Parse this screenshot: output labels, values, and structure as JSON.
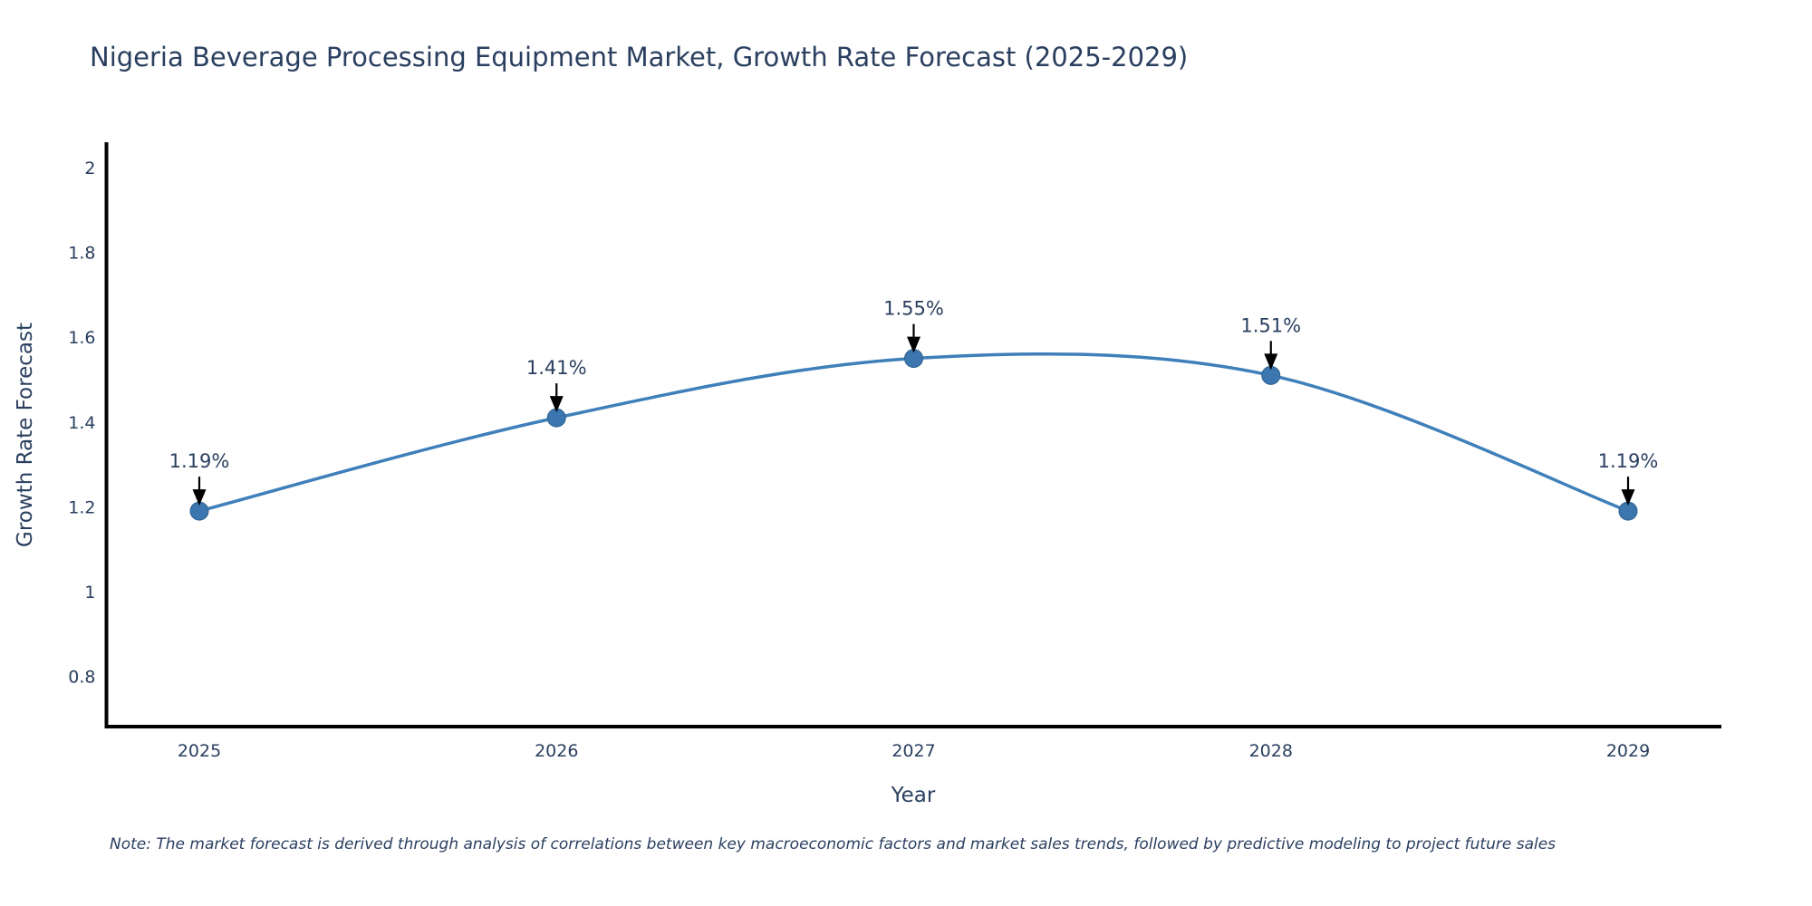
{
  "chart_data": {
    "type": "line",
    "title": "Nigeria Beverage Processing Equipment Market, Growth Rate Forecast (2025-2029)",
    "xlabel": "Year",
    "ylabel": "Growth Rate Forecast",
    "categories": [
      "2025",
      "2026",
      "2027",
      "2028",
      "2029"
    ],
    "series": [
      {
        "name": "Growth Rate Forecast",
        "values": [
          1.19,
          1.41,
          1.55,
          1.51,
          1.19
        ],
        "point_labels": [
          "1.19%",
          "1.41%",
          "1.55%",
          "1.51%",
          "1.19%"
        ]
      }
    ],
    "yticks": [
      0.8,
      1,
      1.2,
      1.4,
      1.6,
      1.8,
      2
    ],
    "ylim": [
      0.68,
      2.06
    ],
    "line_shape": "spline",
    "grid": false,
    "legend_position": "none",
    "colors": {
      "line": "#3f7fba",
      "marker_fill": "#3b76af",
      "marker_edge": "#2f618f",
      "axis_line": "#000000",
      "tick_text": "#2a3f5f",
      "annotation_text": "#2a3f5f",
      "annotation_arrow": "#000000",
      "background": "#ffffff"
    }
  },
  "footnote": "Note: The market forecast is derived through analysis of correlations between key macroeconomic factors and market sales trends, followed by predictive modeling to project future sales"
}
